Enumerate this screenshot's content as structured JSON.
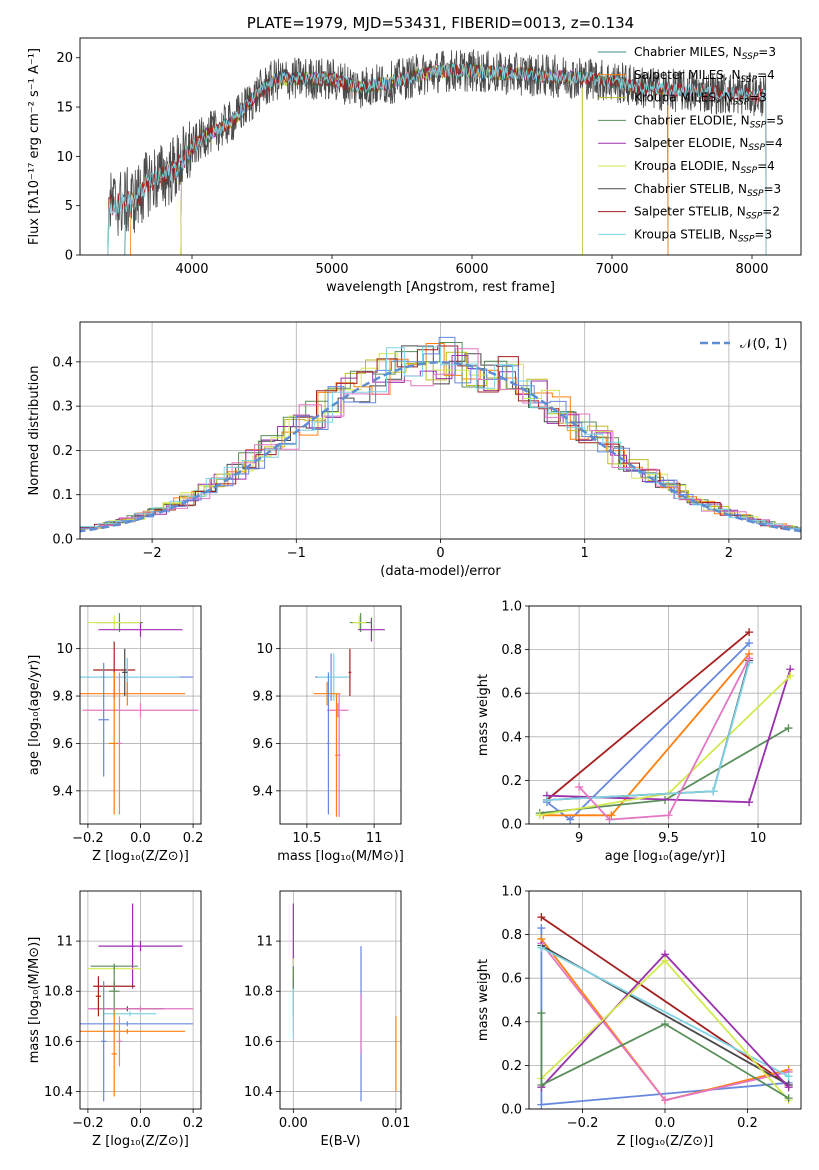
{
  "chart_data": [
    {
      "id": "spectrum",
      "type": "line",
      "title": "PLATE=1979, MJD=53431, FIBERID=0013, z=0.134",
      "xlabel": "wavelength [Angstrom, rest frame]",
      "ylabel": "Flux [fλ10⁻¹⁷ erg cm⁻² s⁻¹ A⁻¹]",
      "xlim": [
        3200,
        8350
      ],
      "ylim": [
        0,
        22
      ],
      "xticks": [
        4000,
        5000,
        6000,
        7000,
        8000
      ],
      "yticks": [
        0,
        5,
        10,
        15,
        20
      ],
      "grid": false,
      "legend_position": "top-right",
      "spectrum_nodes": [
        [
          3400,
          5.0
        ],
        [
          3600,
          5.6
        ],
        [
          3700,
          7.6
        ],
        [
          3800,
          8.0
        ],
        [
          3900,
          9.0
        ],
        [
          4000,
          10.8
        ],
        [
          4100,
          12.2
        ],
        [
          4200,
          12.8
        ],
        [
          4300,
          13.7
        ],
        [
          4400,
          15.3
        ],
        [
          4500,
          16.8
        ],
        [
          4600,
          17.8
        ],
        [
          4800,
          17.9
        ],
        [
          5000,
          17.8
        ],
        [
          5200,
          17.0
        ],
        [
          5400,
          17.4
        ],
        [
          5600,
          18.2
        ],
        [
          5800,
          18.7
        ],
        [
          6000,
          18.7
        ],
        [
          6200,
          18.4
        ],
        [
          6400,
          18.3
        ],
        [
          6600,
          18.1
        ],
        [
          6800,
          18.0
        ],
        [
          7000,
          17.6
        ],
        [
          7200,
          17.0
        ],
        [
          7400,
          16.7
        ],
        [
          7600,
          16.6
        ],
        [
          7800,
          16.4
        ],
        [
          8000,
          16.3
        ],
        [
          8100,
          16.1
        ]
      ],
      "series": [
        {
          "name": "Chabrier MILES, N$_{SSP}$=3",
          "color": "#3c8b8b",
          "wmin": 3520,
          "wmax": 7400
        },
        {
          "name": "Salpeter MILES, N$_{SSP}$=4",
          "color": "#ff7f0e",
          "wmin": 3560,
          "wmax": 7400
        },
        {
          "name": "Kroupa MILES, N$_{SSP}$=3",
          "color": "#bcbd22",
          "wmin": 3920,
          "wmax": 6790
        },
        {
          "name": "Chabrier ELODIE, N$_{SSP}$=5",
          "color": "#5a8f5a",
          "wmin": 3920,
          "wmax": 6790
        },
        {
          "name": "Salpeter ELODIE, N$_{SSP}$=4",
          "color": "#9b30ad",
          "wmin": 3920,
          "wmax": 6790
        },
        {
          "name": "Kroupa ELODIE, N$_{SSP}$=4",
          "color": "#d4e84f",
          "wmin": 3920,
          "wmax": 6790
        },
        {
          "name": "Chabrier STELIB, N$_{SSP}$=3",
          "color": "#4a4a4a",
          "wmin": 3400,
          "wmax": 8100
        },
        {
          "name": "Salpeter STELIB, N$_{SSP}$=2",
          "color": "#a51f1f",
          "wmin": 3400,
          "wmax": 8100
        },
        {
          "name": "Kroupa STELIB, N$_{SSP}$=3",
          "color": "#7fd3e4",
          "wmin": 3400,
          "wmax": 8100
        }
      ]
    },
    {
      "id": "residuals",
      "type": "line",
      "xlabel": "(data-model)/error",
      "ylabel": "Normed distribution",
      "xlim": [
        -2.5,
        2.5
      ],
      "ylim": [
        0,
        0.49
      ],
      "xticks": [
        -2,
        -1,
        0,
        1,
        2
      ],
      "yticks": [
        0.0,
        0.1,
        0.2,
        0.3,
        0.4
      ],
      "grid": true,
      "legend": "𝒩(0, 1)",
      "legend_position": "top-right",
      "reference_curve": "normal(0,1)",
      "histogram_colors": [
        "#4a4a4a",
        "#ff7f0e",
        "#bcbd22",
        "#5a8f5a",
        "#9b30ad",
        "#d4e84f",
        "#a51f1f",
        "#e377c2",
        "#6688dd",
        "#7fd3e4"
      ]
    },
    {
      "id": "age_vs_Z",
      "type": "errorbar",
      "xlabel": "Z [log₁₀(Z/Z⊙)]",
      "ylabel": "age  [log₁₀(age/yr)]",
      "xlim": [
        -0.23,
        0.23
      ],
      "ylim": [
        9.26,
        10.18
      ],
      "xticks": [
        -0.2,
        0.0,
        0.2
      ],
      "xticklabels": [
        "−0.2",
        "0.0",
        "0.2"
      ],
      "yticks": [
        9.4,
        9.6,
        9.8,
        10.0
      ],
      "grid": true,
      "points": [
        {
          "x": -0.08,
          "xerr": 0.09,
          "y": 10.11,
          "yerr": 0.04,
          "color": "#5a8f5a"
        },
        {
          "x": -0.1,
          "xerr": 0.1,
          "y": 10.11,
          "yerr": 0.03,
          "color": "#d4e84f"
        },
        {
          "x": 0.0,
          "xerr": 0.16,
          "y": 10.08,
          "yerr": 0.03,
          "color": "#9b30ad"
        },
        {
          "x": -0.1,
          "xerr": 0.08,
          "y": 9.91,
          "yerr": 0.12,
          "color": "#a51f1f"
        },
        {
          "x": -0.05,
          "xerr": 0.25,
          "y": 9.88,
          "yerr": 0.08,
          "color": "#6688dd"
        },
        {
          "x": -0.05,
          "xerr": 0.2,
          "y": 9.88,
          "yerr": 0.08,
          "color": "#7fd3e4"
        },
        {
          "x": -0.05,
          "xerr": 0.22,
          "y": 9.81,
          "yerr": 0.05,
          "color": "#ff7f0e"
        },
        {
          "x": 0.0,
          "xerr": 0.22,
          "y": 9.74,
          "yerr": 0.03,
          "color": "#e377c2"
        },
        {
          "x": -0.14,
          "xerr": 0.02,
          "y": 9.7,
          "yerr": 0.24,
          "color": "#6688dd"
        },
        {
          "x": -0.1,
          "xerr": 0.02,
          "y": 9.6,
          "yerr": 0.3,
          "color": "#ff7f0e"
        },
        {
          "x": -0.08,
          "xerr": 0.01,
          "y": 9.6,
          "yerr": 0.3,
          "color": "#e377c2"
        },
        {
          "x": -0.06,
          "xerr": 0.01,
          "y": 9.9,
          "yerr": 0.1,
          "color": "#4a4a4a"
        }
      ]
    },
    {
      "id": "age_vs_mass",
      "type": "errorbar",
      "xlabel": "mass [log₁₀(M/M⊙)]",
      "xlim": [
        10.3,
        11.2
      ],
      "ylim": [
        9.26,
        10.18
      ],
      "xticks": [
        10.5,
        11.0
      ],
      "yticks": [
        9.4,
        9.6,
        9.8,
        10.0
      ],
      "grid": true,
      "points": [
        {
          "x": 10.9,
          "xerr": 0.08,
          "y": 10.11,
          "yerr": 0.04,
          "color": "#5a8f5a"
        },
        {
          "x": 10.89,
          "xerr": 0.05,
          "y": 10.11,
          "yerr": 0.03,
          "color": "#d4e84f"
        },
        {
          "x": 10.98,
          "xerr": 0.1,
          "y": 10.08,
          "yerr": 0.05,
          "color": "#9b30ad"
        },
        {
          "x": 10.68,
          "xerr": 0.12,
          "y": 9.88,
          "yerr": 0.1,
          "color": "#6688dd"
        },
        {
          "x": 10.7,
          "xerr": 0.12,
          "y": 9.88,
          "yerr": 0.1,
          "color": "#7fd3e4"
        },
        {
          "x": 10.65,
          "xerr": 0.1,
          "y": 9.81,
          "yerr": 0.05,
          "color": "#ff7f0e"
        },
        {
          "x": 10.73,
          "xerr": 0.08,
          "y": 9.74,
          "yerr": 0.03,
          "color": "#e377c2"
        },
        {
          "x": 10.66,
          "xerr": 0.01,
          "y": 9.6,
          "yerr": 0.3,
          "color": "#6688dd"
        },
        {
          "x": 10.72,
          "xerr": 0.01,
          "y": 9.55,
          "yerr": 0.26,
          "color": "#ff7f0e"
        },
        {
          "x": 10.74,
          "xerr": 0.01,
          "y": 9.55,
          "yerr": 0.26,
          "color": "#e377c2"
        },
        {
          "x": 10.82,
          "xerr": 0.01,
          "y": 9.9,
          "yerr": 0.1,
          "color": "#a51f1f"
        }
      ]
    },
    {
      "id": "weight_vs_age",
      "type": "line",
      "xlabel": "age  [log₁₀(age/yr)]",
      "ylabel": "mass weight",
      "xlim": [
        8.72,
        10.24
      ],
      "ylim": [
        0.0,
        1.0
      ],
      "xticks": [
        9.0,
        9.5,
        10.0
      ],
      "yticks": [
        0.0,
        0.2,
        0.4,
        0.6,
        0.8,
        1.0
      ],
      "grid": true,
      "series": [
        {
          "color": "#a51f1f",
          "x": [
            8.82,
            9.95
          ],
          "y": [
            0.11,
            0.88
          ]
        },
        {
          "color": "#6688dd",
          "x": [
            8.82,
            8.95,
            9.95
          ],
          "y": [
            0.1,
            0.02,
            0.83
          ]
        },
        {
          "color": "#ff7f0e",
          "x": [
            8.8,
            9.18,
            9.95
          ],
          "y": [
            0.04,
            0.04,
            0.78
          ]
        },
        {
          "color": "#5a8f5a",
          "x": [
            8.78,
            9.48,
            10.17
          ],
          "y": [
            0.05,
            0.11,
            0.44
          ]
        },
        {
          "color": "#9b30ad",
          "x": [
            8.82,
            9.95,
            10.18
          ],
          "y": [
            0.13,
            0.1,
            0.71
          ]
        },
        {
          "color": "#d4e84f",
          "x": [
            8.78,
            9.5,
            10.18
          ],
          "y": [
            0.04,
            0.14,
            0.68
          ]
        },
        {
          "color": "#4a4a4a",
          "x": [
            8.82,
            9.75,
            9.95
          ],
          "y": [
            0.11,
            0.15,
            0.75
          ]
        },
        {
          "color": "#7fd3e4",
          "x": [
            8.82,
            9.75,
            9.95
          ],
          "y": [
            0.11,
            0.15,
            0.74
          ]
        },
        {
          "color": "#e377c2",
          "x": [
            9.0,
            9.17,
            9.5,
            9.95
          ],
          "y": [
            0.17,
            0.02,
            0.04,
            0.76
          ]
        }
      ]
    },
    {
      "id": "mass_vs_Z",
      "type": "errorbar",
      "xlabel": "Z [log₁₀(Z/Z⊙)]",
      "ylabel": "mass [log₁₀(M/M⊙)]",
      "xlim": [
        -0.23,
        0.23
      ],
      "ylim": [
        10.33,
        11.2
      ],
      "xticks": [
        -0.2,
        0.0,
        0.2
      ],
      "xticklabels": [
        "−0.2",
        "0.0",
        "0.2"
      ],
      "yticks": [
        10.4,
        10.6,
        10.8,
        11.0
      ],
      "grid": true,
      "points": [
        {
          "x": 0.0,
          "xerr": 0.16,
          "y": 10.98,
          "yerr": 0.02,
          "color": "#9b30ad"
        },
        {
          "x": -0.03,
          "xerr": 0.01,
          "y": 10.98,
          "yerr": 0.17,
          "color": "#9b30ad"
        },
        {
          "x": -0.1,
          "xerr": 0.1,
          "y": 10.89,
          "yerr": 0.02,
          "color": "#d4e84f"
        },
        {
          "x": -0.1,
          "xerr": 0.09,
          "y": 10.9,
          "yerr": 0.01,
          "color": "#5a8f5a"
        },
        {
          "x": -0.1,
          "xerr": 0.08,
          "y": 10.82,
          "yerr": 0.02,
          "color": "#a51f1f"
        },
        {
          "x": -0.1,
          "xerr": 0.02,
          "y": 10.8,
          "yerr": 0.1,
          "color": "#5a8f5a"
        },
        {
          "x": -0.05,
          "xerr": 0.14,
          "y": 10.73,
          "yerr": 0.01,
          "color": "#4a4a4a"
        },
        {
          "x": 0.0,
          "xerr": 0.2,
          "y": 10.73,
          "yerr": 0.01,
          "color": "#e377c2"
        },
        {
          "x": -0.05,
          "xerr": 0.25,
          "y": 10.67,
          "yerr": 0.01,
          "color": "#6688dd"
        },
        {
          "x": -0.05,
          "xerr": 0.22,
          "y": 10.64,
          "yerr": 0.01,
          "color": "#ff7f0e"
        },
        {
          "x": -0.04,
          "xerr": 0.1,
          "y": 10.71,
          "yerr": 0.01,
          "color": "#7fd3e4"
        },
        {
          "x": -0.14,
          "xerr": 0.01,
          "y": 10.6,
          "yerr": 0.24,
          "color": "#6688dd"
        },
        {
          "x": -0.1,
          "xerr": 0.01,
          "y": 10.55,
          "yerr": 0.17,
          "color": "#ff7f0e"
        },
        {
          "x": -0.08,
          "xerr": 0.01,
          "y": 10.6,
          "yerr": 0.1,
          "color": "#e377c2"
        },
        {
          "x": -0.16,
          "xerr": 0.01,
          "y": 10.78,
          "yerr": 0.08,
          "color": "#a51f1f"
        }
      ]
    },
    {
      "id": "mass_vs_ebv",
      "type": "errorbar",
      "xlabel": "E(B-V)",
      "xlim": [
        -0.0013,
        0.0105
      ],
      "ylim": [
        10.33,
        11.2
      ],
      "xticks": [
        0.0,
        0.01
      ],
      "xticklabels": [
        "0.00",
        "0.01"
      ],
      "yticks": [
        10.4,
        10.6,
        10.8,
        11.0
      ],
      "grid": true,
      "points": [
        {
          "x": 0.0,
          "xerr": 0,
          "y": 10.98,
          "yerr": 0.17,
          "color": "#9b30ad"
        },
        {
          "x": 0.0,
          "xerr": 0,
          "y": 10.89,
          "yerr": 0.04,
          "color": "#d4e84f"
        },
        {
          "x": 0.0,
          "xerr": 0,
          "y": 10.8,
          "yerr": 0.1,
          "color": "#5a8f5a"
        },
        {
          "x": 0.0,
          "xerr": 0,
          "y": 10.71,
          "yerr": 0.1,
          "color": "#7fd3e4"
        },
        {
          "x": 0.0066,
          "xerr": 0,
          "y": 10.67,
          "yerr": 0.31,
          "color": "#6688dd"
        },
        {
          "x": 0.0066,
          "xerr": 0,
          "y": 10.67,
          "yerr": 0.12,
          "color": "#e377c2"
        },
        {
          "x": 0.01,
          "xerr": 0,
          "y": 10.55,
          "yerr": 0.15,
          "color": "#ff7f0e"
        }
      ]
    },
    {
      "id": "weight_vs_Z",
      "type": "line",
      "xlabel": "Z [log₁₀(Z/Z⊙)]",
      "ylabel": "mass weight",
      "xlim": [
        -0.33,
        0.33
      ],
      "ylim": [
        0.0,
        1.0
      ],
      "xticks": [
        -0.2,
        0.0,
        0.2
      ],
      "xticklabels": [
        "−0.2",
        "0.0",
        "0.2"
      ],
      "yticks": [
        0.0,
        0.2,
        0.4,
        0.6,
        0.8,
        1.0
      ],
      "grid": true,
      "series": [
        {
          "color": "#a51f1f",
          "x": [
            -0.3,
            0.3
          ],
          "y": [
            0.88,
            0.11
          ]
        },
        {
          "color": "#6688dd",
          "x": [
            -0.3,
            -0.3,
            0.3
          ],
          "y": [
            0.83,
            0.02,
            0.12
          ]
        },
        {
          "color": "#ff7f0e",
          "x": [
            -0.3,
            0.0,
            0.3
          ],
          "y": [
            0.78,
            0.04,
            0.18
          ]
        },
        {
          "color": "#e377c2",
          "x": [
            -0.3,
            0.0,
            0.3
          ],
          "y": [
            0.76,
            0.04,
            0.17
          ]
        },
        {
          "color": "#4a4a4a",
          "x": [
            -0.3,
            0.3
          ],
          "y": [
            0.75,
            0.11
          ]
        },
        {
          "color": "#7fd3e4",
          "x": [
            -0.3,
            0.3
          ],
          "y": [
            0.74,
            0.15
          ]
        },
        {
          "color": "#9b30ad",
          "x": [
            -0.3,
            0.0,
            0.3
          ],
          "y": [
            0.1,
            0.71,
            0.1
          ]
        },
        {
          "color": "#d4e84f",
          "x": [
            -0.3,
            0.0,
            0.3
          ],
          "y": [
            0.14,
            0.68,
            0.04
          ]
        },
        {
          "color": "#5a8f5a",
          "x": [
            -0.3,
            -0.3,
            0.0,
            0.3
          ],
          "y": [
            0.44,
            0.11,
            0.39,
            0.05
          ]
        }
      ]
    }
  ]
}
